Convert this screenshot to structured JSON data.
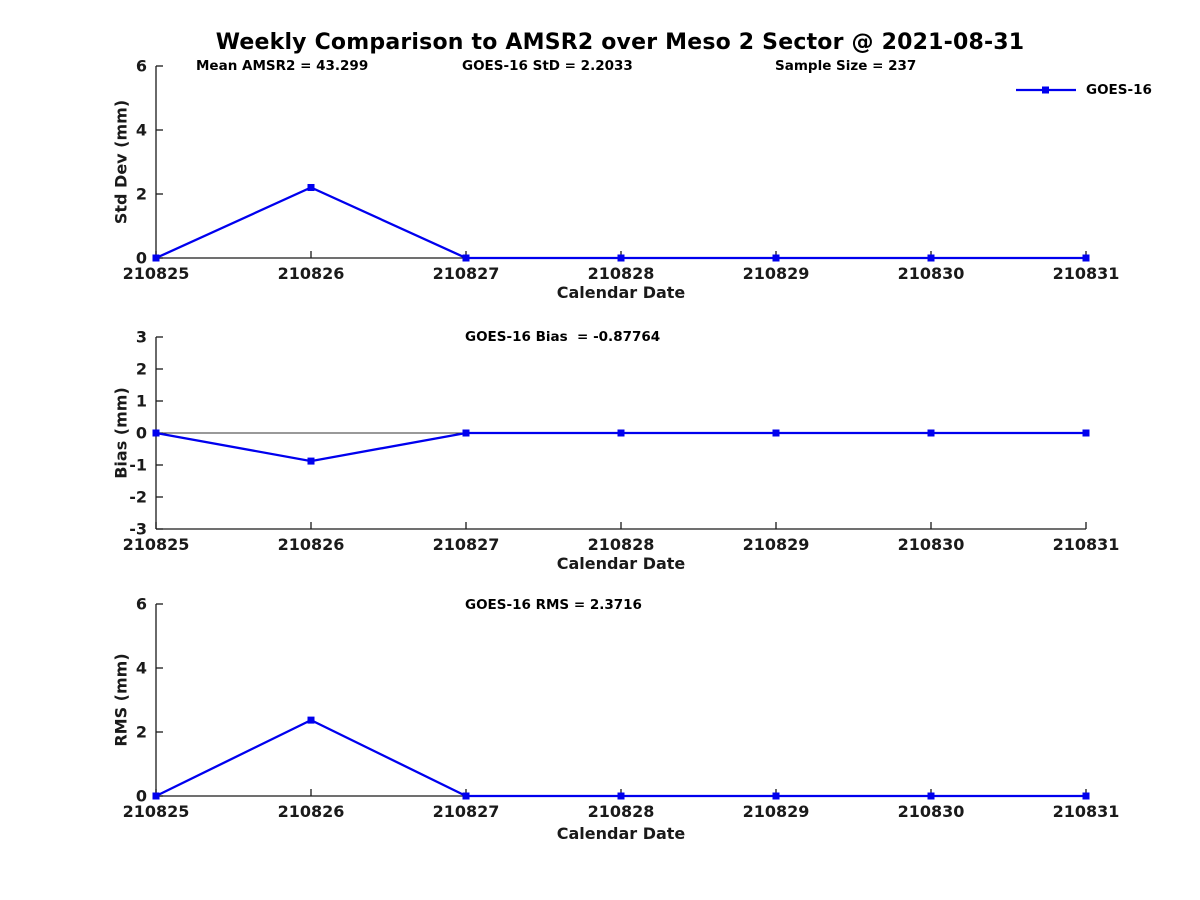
{
  "title": "Weekly Comparison to AMSR2 over Meso 2 Sector @ 2021-08-31",
  "header": {
    "mean_amsr2": "Mean AMSR2 = 43.299",
    "goes16_std": "GOES-16 StD = 2.2033",
    "sample_size": "Sample Size = 237"
  },
  "legend": {
    "label": "GOES-16",
    "position": "top-right"
  },
  "colors": {
    "series": "#0000EE",
    "axis": "#1a1a1a",
    "text": "#000000",
    "background": "#ffffff"
  },
  "chart_data": [
    {
      "type": "line",
      "name": "stddev",
      "categories": [
        "210825",
        "210826",
        "210827",
        "210828",
        "210829",
        "210830",
        "210831"
      ],
      "series": [
        {
          "name": "GOES-16",
          "values": [
            0,
            2.2033,
            0,
            0,
            0,
            0,
            0
          ]
        }
      ],
      "ylabel": "Std Dev (mm)",
      "xlabel": "Calendar Date",
      "ylim": [
        0,
        6
      ],
      "yticks": [
        0,
        2,
        4,
        6
      ],
      "marker": "square",
      "grid": false,
      "annotation": ""
    },
    {
      "type": "line",
      "name": "bias",
      "categories": [
        "210825",
        "210826",
        "210827",
        "210828",
        "210829",
        "210830",
        "210831"
      ],
      "series": [
        {
          "name": "GOES-16",
          "values": [
            0,
            -0.87764,
            0,
            0,
            0,
            0,
            0
          ]
        }
      ],
      "ylabel": "Bias (mm)",
      "xlabel": "Calendar Date",
      "ylim": [
        -3,
        3
      ],
      "yticks": [
        -3,
        -2,
        -1,
        0,
        1,
        2,
        3
      ],
      "zero_line": true,
      "marker": "square",
      "grid": false,
      "annotation": "GOES-16 Bias  = -0.87764"
    },
    {
      "type": "line",
      "name": "rms",
      "categories": [
        "210825",
        "210826",
        "210827",
        "210828",
        "210829",
        "210830",
        "210831"
      ],
      "series": [
        {
          "name": "GOES-16",
          "values": [
            0,
            2.3716,
            0,
            0,
            0,
            0,
            0
          ]
        }
      ],
      "ylabel": "RMS (mm)",
      "xlabel": "Calendar Date",
      "ylim": [
        0,
        6
      ],
      "yticks": [
        0,
        2,
        4,
        6
      ],
      "marker": "square",
      "grid": false,
      "annotation": "GOES-16 RMS = 2.3716"
    }
  ]
}
